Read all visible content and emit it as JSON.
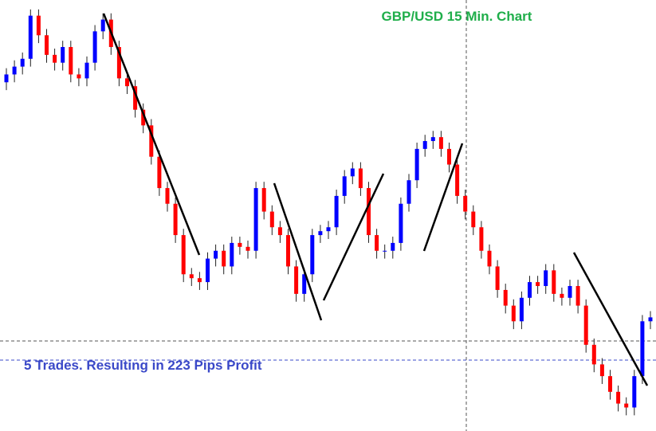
{
  "chart_data": {
    "type": "candlestick",
    "title": "GBP/USD 15 Min. Chart",
    "annotation": "5 Trades. Resulting in 223 Pips Profit",
    "up_color": "#0000ff",
    "down_color": "#ff0000",
    "wick_color": "#222222",
    "ylim": [
      0,
      550
    ],
    "open": [
      445,
      455,
      465,
      475,
      530,
      505,
      480,
      470,
      490,
      455,
      450,
      470,
      510,
      525,
      490,
      450,
      440,
      410,
      390,
      350,
      310,
      290,
      250,
      200,
      195,
      190,
      220,
      230,
      210,
      240,
      235,
      230,
      310,
      280,
      260,
      250,
      210,
      175,
      200,
      250,
      255,
      260,
      300,
      325,
      335,
      310,
      250,
      230,
      230,
      240,
      290,
      320,
      360,
      370,
      375,
      360,
      340,
      300,
      280,
      260,
      230,
      210,
      180,
      160,
      140,
      170,
      190,
      185,
      205,
      175,
      170,
      185,
      160,
      110,
      85,
      70,
      50,
      35,
      30,
      70,
      140
    ],
    "high": [
      463,
      473,
      483,
      538,
      538,
      513,
      488,
      498,
      498,
      463,
      478,
      518,
      533,
      533,
      498,
      458,
      448,
      418,
      398,
      358,
      318,
      298,
      258,
      208,
      203,
      228,
      238,
      238,
      248,
      248,
      243,
      318,
      318,
      288,
      268,
      258,
      218,
      208,
      258,
      263,
      268,
      308,
      333,
      343,
      343,
      318,
      258,
      238,
      248,
      298,
      328,
      368,
      378,
      383,
      383,
      368,
      348,
      308,
      288,
      268,
      238,
      218,
      188,
      168,
      178,
      198,
      198,
      213,
      213,
      183,
      193,
      193,
      168,
      118,
      93,
      78,
      58,
      43,
      78,
      148,
      153
    ],
    "low": [
      435,
      445,
      455,
      465,
      495,
      470,
      460,
      460,
      445,
      440,
      440,
      460,
      500,
      480,
      440,
      430,
      400,
      380,
      340,
      300,
      280,
      240,
      190,
      185,
      180,
      180,
      210,
      200,
      200,
      225,
      220,
      220,
      270,
      250,
      240,
      200,
      165,
      165,
      190,
      240,
      245,
      250,
      290,
      315,
      300,
      240,
      220,
      220,
      220,
      230,
      280,
      310,
      350,
      360,
      350,
      330,
      290,
      270,
      250,
      220,
      200,
      170,
      150,
      130,
      130,
      160,
      175,
      175,
      165,
      160,
      160,
      150,
      100,
      75,
      60,
      40,
      25,
      20,
      20,
      60,
      130
    ],
    "close": [
      455,
      465,
      475,
      530,
      505,
      480,
      470,
      490,
      455,
      450,
      470,
      510,
      525,
      490,
      450,
      440,
      410,
      390,
      350,
      310,
      290,
      250,
      200,
      195,
      190,
      220,
      230,
      210,
      240,
      235,
      230,
      310,
      280,
      260,
      250,
      210,
      175,
      200,
      250,
      255,
      260,
      300,
      325,
      335,
      310,
      250,
      230,
      230,
      240,
      290,
      320,
      360,
      370,
      375,
      360,
      340,
      300,
      280,
      260,
      230,
      210,
      180,
      160,
      140,
      170,
      190,
      185,
      205,
      175,
      170,
      185,
      160,
      110,
      85,
      70,
      50,
      35,
      30,
      70,
      140,
      145
    ]
  }
}
